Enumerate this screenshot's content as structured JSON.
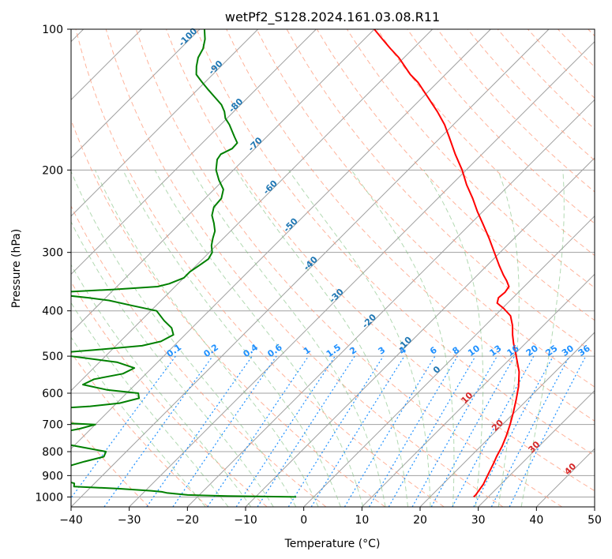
{
  "chart_data": {
    "type": "line",
    "subtype": "skew-t log-p diagram",
    "title": "wetPf2_S128.2024.161.03.08.R11",
    "xlabel": "Temperature (°C)",
    "ylabel": "Pressure (hPa)",
    "xlim": [
      -40,
      50
    ],
    "ylim": [
      1050,
      100
    ],
    "y_scale": "log",
    "x_ticks": [
      -40,
      -30,
      -20,
      -10,
      0,
      10,
      20,
      30,
      40,
      50
    ],
    "y_ticks": [
      100,
      200,
      300,
      400,
      500,
      600,
      700,
      800,
      900,
      1000
    ],
    "grid": true,
    "colors": {
      "temperature": "#ff0000",
      "dewpoint": "#008000",
      "isotherm_grid": "#a0a0a0",
      "dry_adiabat": "#ff9a7a",
      "moist_adiabat": "#7fbf7f",
      "mixing_ratio": "#1e90ff",
      "label_blue": "#1f77b4",
      "label_red": "#d62728",
      "label_mixing": "#1e90ff"
    },
    "isotherm_labels_blue": [
      "-100",
      "-90",
      "-80",
      "-70",
      "-60",
      "-50",
      "-40",
      "-30",
      "-20",
      "-10",
      "0"
    ],
    "isotherm_labels_red": [
      "10",
      "20",
      "30",
      "40"
    ],
    "mixing_ratio_labels": [
      "0.1",
      "0.2",
      "0.4",
      "0.6",
      "1",
      "1.5",
      "2",
      "3",
      "4",
      "6",
      "8",
      "10",
      "13",
      "16",
      "20",
      "25",
      "30",
      "36"
    ],
    "series": [
      {
        "name": "temperature",
        "points": [
          [
            1000,
            27.5
          ],
          [
            990,
            27.5
          ],
          [
            970,
            27.3
          ],
          [
            940,
            27.0
          ],
          [
            910,
            26.4
          ],
          [
            880,
            25.8
          ],
          [
            850,
            25.2
          ],
          [
            820,
            24.5
          ],
          [
            780,
            23.7
          ],
          [
            740,
            22.6
          ],
          [
            700,
            21.3
          ],
          [
            660,
            19.8
          ],
          [
            620,
            18.1
          ],
          [
            580,
            16.2
          ],
          [
            540,
            13.8
          ],
          [
            500,
            10.6
          ],
          [
            470,
            8.0
          ],
          [
            450,
            6.3
          ],
          [
            430,
            4.7
          ],
          [
            410,
            2.7
          ],
          [
            395,
            0.2
          ],
          [
            385,
            -1.8
          ],
          [
            375,
            -2.5
          ],
          [
            365,
            -2.3
          ],
          [
            355,
            -2.6
          ],
          [
            345,
            -4.0
          ],
          [
            335,
            -5.6
          ],
          [
            320,
            -7.9
          ],
          [
            300,
            -11.0
          ],
          [
            280,
            -14.3
          ],
          [
            260,
            -18.0
          ],
          [
            245,
            -21.0
          ],
          [
            230,
            -24.0
          ],
          [
            215,
            -27.4
          ],
          [
            200,
            -30.7
          ],
          [
            185,
            -34.6
          ],
          [
            170,
            -38.6
          ],
          [
            160,
            -41.5
          ],
          [
            150,
            -45.0
          ],
          [
            140,
            -49.0
          ],
          [
            130,
            -53.3
          ],
          [
            125,
            -56.0
          ],
          [
            120,
            -58.4
          ],
          [
            115,
            -60.9
          ],
          [
            110,
            -63.9
          ],
          [
            105,
            -66.9
          ],
          [
            100,
            -70.0
          ]
        ]
      },
      {
        "name": "dewpoint",
        "points": [
          [
            1000,
            -3.0
          ],
          [
            995,
            -15.0
          ],
          [
            990,
            -22.0
          ],
          [
            980,
            -26.0
          ],
          [
            975,
            -27.0
          ],
          [
            970,
            -29.0
          ],
          [
            960,
            -35.0
          ],
          [
            950,
            -43.0
          ],
          [
            935,
            -43.5
          ],
          [
            920,
            -46.0
          ],
          [
            905,
            -48.0
          ],
          [
            890,
            -47.5
          ],
          [
            870,
            -48.0
          ],
          [
            855,
            -47.0
          ],
          [
            840,
            -45.5
          ],
          [
            820,
            -43.0
          ],
          [
            800,
            -43.5
          ],
          [
            770,
            -52.0
          ],
          [
            745,
            -66.0
          ],
          [
            740,
            -71.0
          ],
          [
            735,
            -62.0
          ],
          [
            730,
            -55.0
          ],
          [
            715,
            -52.0
          ],
          [
            700,
            -50.0
          ],
          [
            690,
            -61.0
          ],
          [
            680,
            -69.0
          ],
          [
            670,
            -73.0
          ],
          [
            650,
            -62.0
          ],
          [
            640,
            -54.0
          ],
          [
            630,
            -49.5
          ],
          [
            615,
            -47.0
          ],
          [
            600,
            -48.0
          ],
          [
            590,
            -54.0
          ],
          [
            575,
            -59.0
          ],
          [
            560,
            -58.0
          ],
          [
            545,
            -54.0
          ],
          [
            530,
            -53.0
          ],
          [
            515,
            -57.0
          ],
          [
            500,
            -66.0
          ],
          [
            490,
            -67.0
          ],
          [
            485,
            -63.0
          ],
          [
            475,
            -55.5
          ],
          [
            465,
            -53.0
          ],
          [
            450,
            -52.0
          ],
          [
            435,
            -53.5
          ],
          [
            420,
            -56.0
          ],
          [
            400,
            -59.0
          ],
          [
            390,
            -64.0
          ],
          [
            380,
            -69.0
          ],
          [
            375,
            -73.0
          ],
          [
            370,
            -78.0
          ],
          [
            365,
            -79.0
          ],
          [
            360,
            -70.0
          ],
          [
            355,
            -63.0
          ],
          [
            350,
            -61.5
          ],
          [
            340,
            -60.0
          ],
          [
            330,
            -60.0
          ],
          [
            320,
            -59.5
          ],
          [
            310,
            -59.0
          ],
          [
            300,
            -59.5
          ],
          [
            290,
            -60.8
          ],
          [
            280,
            -61.8
          ],
          [
            270,
            -62.7
          ],
          [
            260,
            -64.2
          ],
          [
            250,
            -65.9
          ],
          [
            240,
            -67.0
          ],
          [
            230,
            -67.2
          ],
          [
            220,
            -68.4
          ],
          [
            210,
            -70.8
          ],
          [
            200,
            -73.0
          ],
          [
            190,
            -74.6
          ],
          [
            185,
            -74.9
          ],
          [
            180,
            -73.9
          ],
          [
            175,
            -74.0
          ],
          [
            170,
            -75.5
          ],
          [
            160,
            -78.5
          ],
          [
            155,
            -80.3
          ],
          [
            150,
            -81.6
          ],
          [
            145,
            -83.3
          ],
          [
            140,
            -85.6
          ],
          [
            135,
            -88.0
          ],
          [
            130,
            -90.4
          ],
          [
            125,
            -92.8
          ],
          [
            120,
            -94.2
          ],
          [
            115,
            -95.4
          ],
          [
            110,
            -96.1
          ],
          [
            105,
            -97.4
          ],
          [
            100,
            -99.2
          ]
        ]
      }
    ]
  }
}
